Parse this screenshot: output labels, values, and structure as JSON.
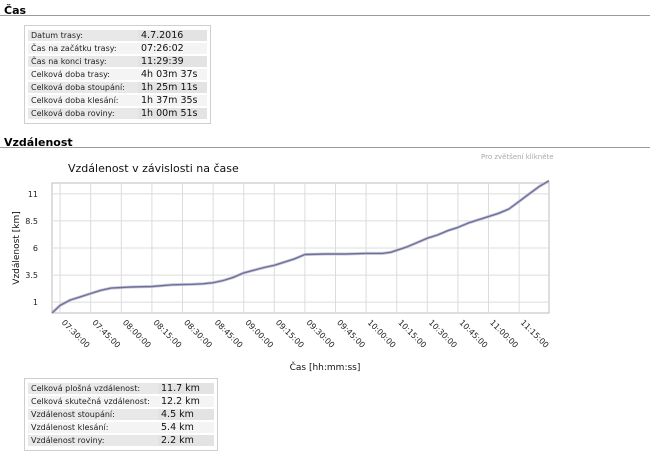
{
  "time_section": {
    "title": "Čas",
    "rows": [
      {
        "label": "Datum trasy:",
        "value": "4.7.2016"
      },
      {
        "label": "Čas na začátku trasy:",
        "value": "07:26:02"
      },
      {
        "label": "Čas na konci trasy:",
        "value": "11:29:39"
      },
      {
        "label": "Celková doba trasy:",
        "value": "4h 03m 37s"
      },
      {
        "label": "Celková doba stoupání:",
        "value": "1h 25m 11s"
      },
      {
        "label": "Celková doba klesání:",
        "value": "1h 37m 35s"
      },
      {
        "label": "Celková doba roviny:",
        "value": "1h 00m 51s"
      }
    ]
  },
  "distance_section": {
    "title": "Vzdálenost",
    "zoom_hint": "Pro zvětšení klikněte",
    "rows": [
      {
        "label": "Celková plošná vzdálenost:",
        "value": "11.7 km"
      },
      {
        "label": "Celková skutečná vzdálenost:",
        "value": "12.2 km"
      },
      {
        "label": "Vzdálenost stoupání:",
        "value": "4.5 km"
      },
      {
        "label": "Vzdálenost klesání:",
        "value": "5.4 km"
      },
      {
        "label": "Vzdálenost roviny:",
        "value": "2.2 km"
      }
    ]
  },
  "chart_data": {
    "type": "line",
    "title": "Vzdálenost v závislosti na čase",
    "xlabel": "Čas [hh:mm:ss]",
    "ylabel": "Vzdálenost [km]",
    "xlim": [
      "07:26:02",
      "11:29:39"
    ],
    "ylim": [
      0,
      12
    ],
    "yticks": [
      1,
      3.5,
      6,
      8.5,
      11
    ],
    "xticks": [
      "07:30:00",
      "07:45:00",
      "08:00:00",
      "08:15:00",
      "08:30:00",
      "08:45:00",
      "09:00:00",
      "09:15:00",
      "09:30:00",
      "09:45:00",
      "10:00:00",
      "10:15:00",
      "10:30:00",
      "10:45:00",
      "11:00:00",
      "11:15:00"
    ],
    "grid": true,
    "line_color": "#6f6f9e",
    "series": [
      {
        "x": [
          "07:26:02",
          "07:30:00",
          "07:35:00",
          "07:40:00",
          "07:45:00",
          "07:50:00",
          "07:55:00",
          "08:00:00",
          "08:05:00",
          "08:15:00",
          "08:25:00",
          "08:35:00",
          "08:40:00",
          "08:45:00",
          "08:50:00",
          "08:55:00",
          "09:00:00",
          "09:05:00",
          "09:10:00",
          "09:15:00",
          "09:20:00",
          "09:25:00",
          "09:30:00",
          "09:40:00",
          "09:50:00",
          "10:00:00",
          "10:08:00",
          "10:12:00",
          "10:20:00",
          "10:25:00",
          "10:30:00",
          "10:35:00",
          "10:40:00",
          "10:45:00",
          "10:50:00",
          "10:55:00",
          "11:00:00",
          "11:05:00",
          "11:10:00",
          "11:15:00",
          "11:20:00",
          "11:25:00",
          "11:29:39"
        ],
        "y": [
          0,
          0.7,
          1.2,
          1.5,
          1.8,
          2.1,
          2.3,
          2.35,
          2.4,
          2.45,
          2.6,
          2.65,
          2.7,
          2.8,
          3.0,
          3.3,
          3.7,
          3.95,
          4.2,
          4.4,
          4.7,
          5.0,
          5.4,
          5.45,
          5.45,
          5.5,
          5.5,
          5.6,
          6.1,
          6.5,
          6.9,
          7.2,
          7.6,
          7.9,
          8.3,
          8.6,
          8.9,
          9.2,
          9.6,
          10.3,
          11.0,
          11.7,
          12.2
        ]
      }
    ]
  }
}
